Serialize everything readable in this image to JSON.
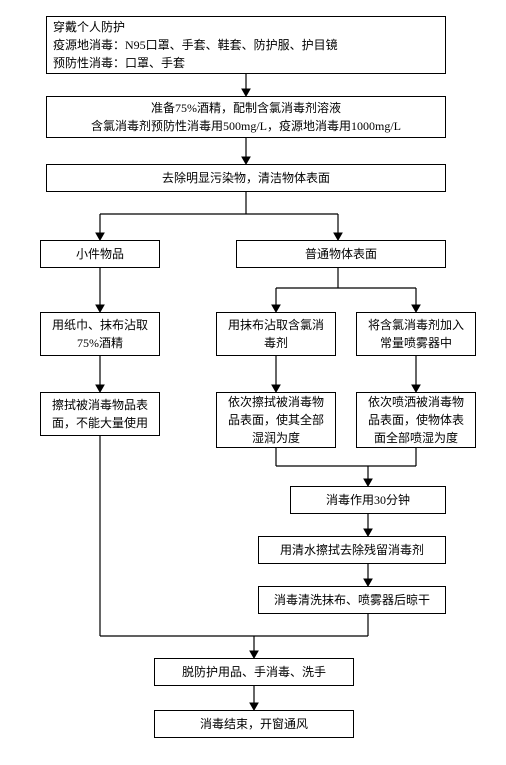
{
  "chart": {
    "type": "flowchart",
    "background_color": "#ffffff",
    "border_color": "#000000",
    "font_family": "SimSun",
    "font_size_pt": 9,
    "nodes": {
      "n1": {
        "text": "穿戴个人防护\n疫源地消毒：N95口罩、手套、鞋套、防护服、护目镜\n预防性消毒：口罩、手套",
        "align": "left"
      },
      "n2": {
        "text": "准备75%酒精，配制含氯消毒剂溶液\n含氯消毒剂预防性消毒用500mg/L，疫源地消毒用1000mg/L"
      },
      "n3": {
        "text": "去除明显污染物，清洁物体表面"
      },
      "n4": {
        "text": "小件物品"
      },
      "n5": {
        "text": "普通物体表面"
      },
      "n6": {
        "text": "用纸巾、抹布沾取75%酒精"
      },
      "n7": {
        "text": "用抹布沾取含氯消毒剂"
      },
      "n8": {
        "text": "将含氯消毒剂加入常量喷雾器中"
      },
      "n9": {
        "text": "擦拭被消毒物品表面，不能大量使用"
      },
      "n10": {
        "text": "依次擦拭被消毒物品表面，使其全部湿润为度"
      },
      "n11": {
        "text": "依次喷洒被消毒物品表面，使物体表面全部喷湿为度"
      },
      "n12": {
        "text": "消毒作用30分钟"
      },
      "n13": {
        "text": "用清水擦拭去除残留消毒剂"
      },
      "n14": {
        "text": "消毒清洗抹布、喷雾器后晾干"
      },
      "n15": {
        "text": "脱防护用品、手消毒、洗手"
      },
      "n16": {
        "text": "消毒结束，开窗通风"
      }
    }
  }
}
